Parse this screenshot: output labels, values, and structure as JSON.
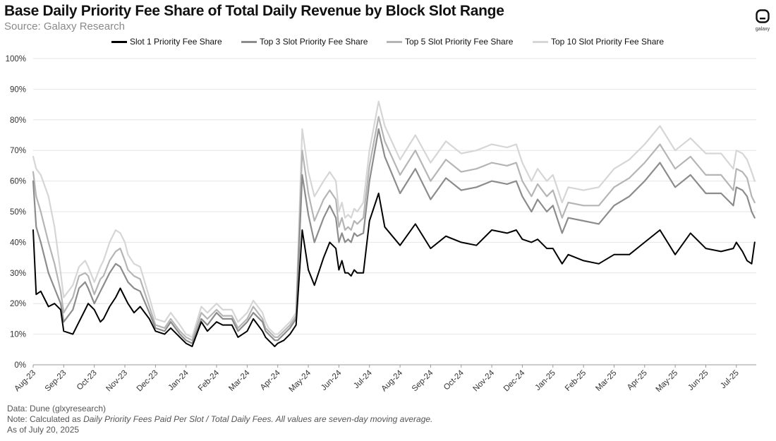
{
  "header": {
    "title": "Base Daily Priority Fee Share of Total Daily Revenue by Block Slot Range",
    "subtitle": "Source: Galaxy Research",
    "logo_text": "galaxy"
  },
  "notes": {
    "line1": "Data: Dune (glxyresearch)",
    "line2_prefix": "Note: Calculated as ",
    "line2_italic": "Daily Priority Fees Paid Per Slot / Total Daily Fees. All values are seven-day moving average.",
    "line3": "As of July 20, 2025"
  },
  "chart_data": {
    "type": "line",
    "title": "Base Daily Priority Fee Share of Total Daily Revenue by Block Slot Range",
    "xlabel": "",
    "ylabel": "",
    "ylim": [
      0,
      100
    ],
    "yticks": [
      "0%",
      "10%",
      "20%",
      "30%",
      "40%",
      "50%",
      "60%",
      "70%",
      "80%",
      "90%",
      "100%"
    ],
    "xlim": [
      0,
      23.65
    ],
    "xticks": [
      "Aug-23",
      "Sep-23",
      "Oct-23",
      "Nov-23",
      "Dec-23",
      "Jan-24",
      "Feb-24",
      "Mar-24",
      "Apr-24",
      "May-24",
      "Jun-24",
      "Jul-24",
      "Aug-24",
      "Sep-24",
      "Oct-24",
      "Nov-24",
      "Dec-24",
      "Jan-25",
      "Feb-25",
      "Mar-25",
      "Apr-25",
      "May-25",
      "Jun-25",
      "Jul-25"
    ],
    "grid": true,
    "legend_position": "top-center",
    "x": [
      0.0,
      0.1,
      0.25,
      0.5,
      0.7,
      0.9,
      1.0,
      1.3,
      1.5,
      1.7,
      1.8,
      2.0,
      2.2,
      2.3,
      2.5,
      2.7,
      2.85,
      3.0,
      3.1,
      3.3,
      3.5,
      3.8,
      4.0,
      4.3,
      4.5,
      4.8,
      5.0,
      5.2,
      5.5,
      5.7,
      6.0,
      6.2,
      6.5,
      6.7,
      7.0,
      7.2,
      7.5,
      7.6,
      7.7,
      7.8,
      7.9,
      8.0,
      8.2,
      8.4,
      8.6,
      8.8,
      9.0,
      9.2,
      9.5,
      9.7,
      9.9,
      10.0,
      10.1,
      10.2,
      10.3,
      10.4,
      10.5,
      10.6,
      10.8,
      11.0,
      11.3,
      11.5,
      12.0,
      12.5,
      13.0,
      13.5,
      14.0,
      14.5,
      15.0,
      15.5,
      15.8,
      16.0,
      16.3,
      16.5,
      16.8,
      17.0,
      17.3,
      17.5,
      18.0,
      18.5,
      19.0,
      19.5,
      20.0,
      20.5,
      21.0,
      21.5,
      22.0,
      22.5,
      22.9,
      23.0,
      23.2,
      23.35,
      23.5,
      23.6
    ],
    "series": [
      {
        "name": "Slot 1 Priority Fee Share",
        "color": "#000000",
        "values": [
          44,
          23,
          24,
          19,
          20,
          18,
          11,
          10,
          14,
          18,
          20,
          18,
          14,
          15,
          19,
          22,
          25,
          22,
          20,
          17,
          19,
          15,
          11,
          10,
          12,
          9,
          7,
          6,
          14,
          11,
          14,
          13,
          13,
          9,
          11,
          15,
          11,
          9,
          8,
          7,
          6,
          7,
          8,
          10,
          13,
          44,
          31,
          26,
          35,
          40,
          38,
          31,
          34,
          30,
          30,
          29,
          31,
          30,
          30,
          47,
          56,
          45,
          39,
          46,
          38,
          42,
          40,
          39,
          44,
          43,
          44,
          41,
          40,
          41,
          38,
          38,
          33,
          36,
          34,
          33,
          36,
          36,
          40,
          44,
          36,
          43,
          38,
          37,
          38,
          40,
          37,
          34,
          33,
          40
        ]
      },
      {
        "name": "Top 3 Slot Priority Fee Share",
        "color": "#8c8c8c",
        "values": [
          60,
          45,
          40,
          30,
          25,
          20,
          14,
          18,
          25,
          27,
          25,
          20,
          24,
          26,
          30,
          33,
          32,
          29,
          27,
          25,
          24,
          17,
          12,
          11,
          14,
          10,
          8,
          7,
          15,
          13,
          17,
          15,
          15,
          11,
          14,
          17,
          14,
          11,
          10,
          9,
          8,
          8,
          10,
          12,
          15,
          62,
          49,
          40,
          48,
          52,
          48,
          40,
          43,
          40,
          41,
          40,
          43,
          42,
          43,
          60,
          77,
          68,
          56,
          64,
          54,
          61,
          57,
          58,
          60,
          59,
          60,
          55,
          50,
          54,
          50,
          52,
          43,
          48,
          47,
          46,
          52,
          55,
          60,
          66,
          58,
          62,
          56,
          56,
          52,
          58,
          57,
          55,
          50,
          48
        ]
      },
      {
        "name": "Top 5 Slot Priority Fee Share",
        "color": "#b5b5b5",
        "values": [
          63,
          55,
          50,
          40,
          33,
          24,
          17,
          22,
          29,
          30,
          29,
          23,
          28,
          29,
          34,
          37,
          38,
          34,
          31,
          29,
          28,
          19,
          13,
          12,
          15,
          11,
          9,
          8,
          17,
          15,
          18,
          16,
          16,
          12,
          15,
          19,
          15,
          12,
          11,
          10,
          9,
          9,
          11,
          13,
          16,
          70,
          56,
          47,
          54,
          57,
          54,
          45,
          48,
          44,
          45,
          44,
          47,
          46,
          48,
          65,
          81,
          73,
          62,
          70,
          60,
          67,
          63,
          64,
          66,
          65,
          66,
          60,
          55,
          59,
          55,
          57,
          48,
          53,
          52,
          52,
          58,
          61,
          66,
          72,
          64,
          68,
          62,
          62,
          57,
          64,
          63,
          61,
          55,
          53
        ]
      },
      {
        "name": "Top 10 Slot Priority Fee Share",
        "color": "#d6d6d6",
        "values": [
          68,
          64,
          62,
          55,
          45,
          30,
          22,
          26,
          32,
          34,
          32,
          27,
          32,
          34,
          40,
          44,
          43,
          40,
          36,
          33,
          32,
          22,
          15,
          14,
          17,
          13,
          10,
          9,
          19,
          17,
          20,
          18,
          18,
          14,
          17,
          21,
          17,
          14,
          12,
          11,
          10,
          10,
          12,
          14,
          17,
          77,
          63,
          55,
          60,
          63,
          60,
          50,
          53,
          48,
          49,
          48,
          51,
          50,
          53,
          70,
          86,
          78,
          67,
          75,
          66,
          73,
          69,
          70,
          72,
          71,
          72,
          66,
          60,
          64,
          60,
          62,
          53,
          58,
          57,
          58,
          64,
          67,
          72,
          78,
          70,
          74,
          69,
          69,
          64,
          70,
          69,
          67,
          63,
          60
        ]
      }
    ]
  }
}
